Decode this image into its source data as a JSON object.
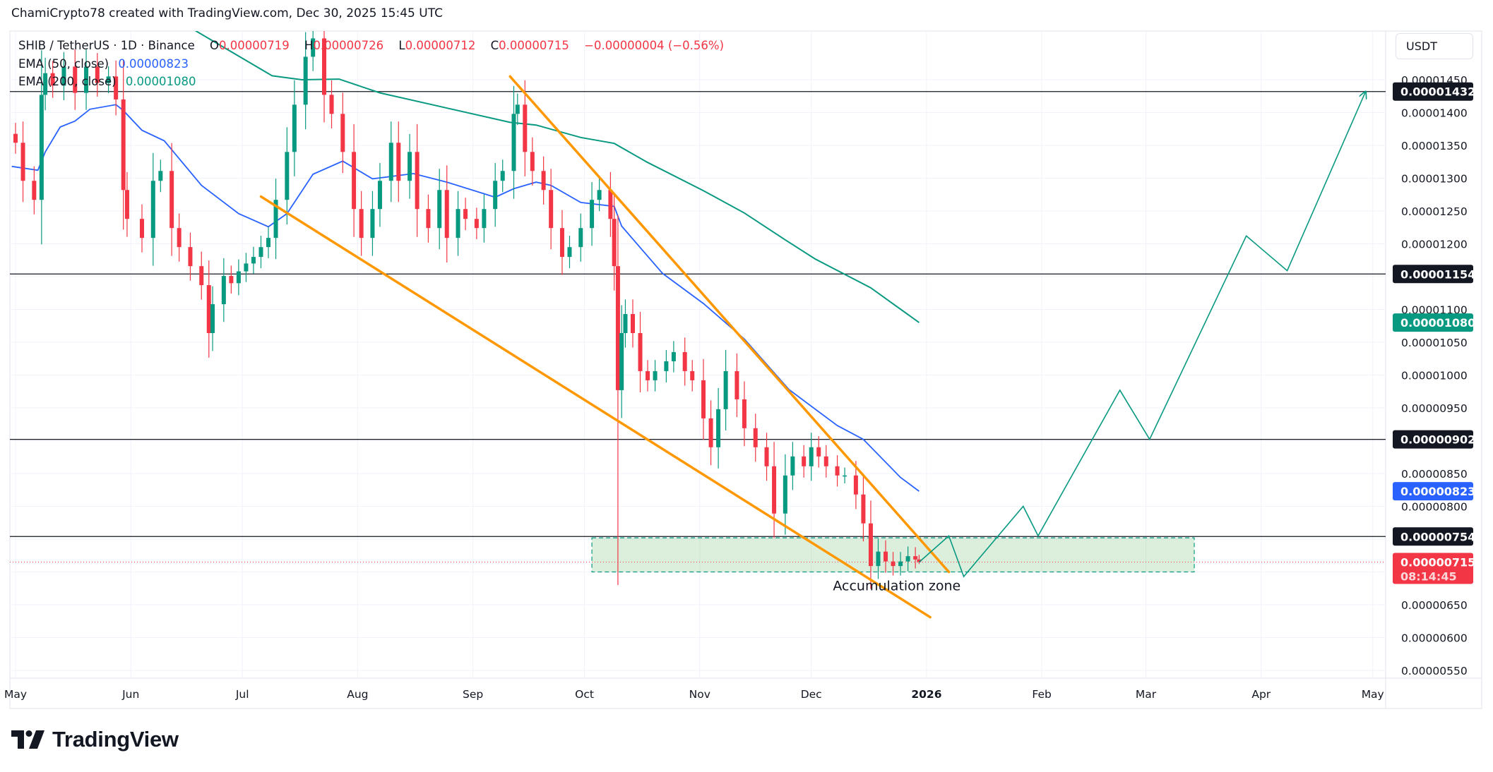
{
  "header": {
    "credit": "ChamiCrypto78 created with TradingView.com, Dec 30, 2025 15:45 UTC"
  },
  "legend": {
    "symbol": "SHIB / TetherUS · 1D · Binance",
    "o_label": "O",
    "o_value": "0.00000719",
    "h_label": "H",
    "h_value": "0.00000726",
    "l_label": "L",
    "l_value": "0.00000712",
    "c_label": "C",
    "c_value": "0.00000715",
    "change": "−0.00000004 (−0.56%)",
    "ema50_label": "EMA (50, close)",
    "ema50_value": "0.00000823",
    "ema200_label": "EMA (200, close)",
    "ema200_value": "0.00001080"
  },
  "price_axis": {
    "currency": "USDT",
    "ticks": [
      "0.00001450",
      "0.00001400",
      "0.00001350",
      "0.00001300",
      "0.00001250",
      "0.00001200",
      "0.00001100",
      "0.00001050",
      "0.00001000",
      "0.00000950",
      "0.00000850",
      "0.00000800",
      "0.00000650",
      "0.00000600",
      "0.00000550"
    ],
    "tags": [
      {
        "value": "0.00001432",
        "color": "#131722"
      },
      {
        "value": "0.00001154",
        "color": "#131722"
      },
      {
        "value": "0.00001080",
        "color": "#089981"
      },
      {
        "value": "0.00000902",
        "color": "#131722"
      },
      {
        "value": "0.00000823",
        "color": "#2962ff"
      },
      {
        "value": "0.00000754",
        "color": "#131722"
      },
      {
        "value": "0.00000715",
        "color": "#f23645",
        "countdown": "08:14:45"
      }
    ]
  },
  "time_axis": {
    "ticks": [
      {
        "label": "May",
        "date": "2025-05-01"
      },
      {
        "label": "Jun",
        "date": "2025-06-01"
      },
      {
        "label": "Jul",
        "date": "2025-07-01"
      },
      {
        "label": "Aug",
        "date": "2025-08-01"
      },
      {
        "label": "Sep",
        "date": "2025-09-01"
      },
      {
        "label": "Oct",
        "date": "2025-10-01"
      },
      {
        "label": "Nov",
        "date": "2025-11-01"
      },
      {
        "label": "Dec",
        "date": "2025-12-01"
      },
      {
        "label": "2026",
        "date": "2026-01-01",
        "bold": true
      },
      {
        "label": "Feb",
        "date": "2026-02-01"
      },
      {
        "label": "Mar",
        "date": "2026-03-01"
      },
      {
        "label": "Apr",
        "date": "2026-04-01"
      },
      {
        "label": "May",
        "date": "2026-05-01"
      }
    ]
  },
  "chart_data": {
    "type": "candlestick",
    "title": "SHIB / TetherUS · 1D · Binance",
    "ylim": [
      5.1e-06,
      1.54e-05
    ],
    "xlim": [
      "2025-05-01",
      "2026-05-15"
    ],
    "grid": true,
    "colors": {
      "up": "#089981",
      "down": "#f23645",
      "ema50": "#2962ff",
      "ema200": "#089981",
      "trendline": "#ff9800",
      "projection": "#089981",
      "level": "#131722"
    },
    "candles_close": [
      [
        "2025-05-01",
        1.354e-05
      ],
      [
        "2025-05-03",
        1.296e-05
      ],
      [
        "2025-05-06",
        1.267e-05
      ],
      [
        "2025-05-08",
        1.427e-05
      ],
      [
        "2025-05-09",
        1.46e-05
      ],
      [
        "2025-05-11",
        1.441e-05
      ],
      [
        "2025-05-14",
        1.47e-05
      ],
      [
        "2025-05-17",
        1.43e-05
      ],
      [
        "2025-05-20",
        1.47e-05
      ],
      [
        "2025-05-23",
        1.445e-05
      ],
      [
        "2025-05-26",
        1.455e-05
      ],
      [
        "2025-05-28",
        1.42e-05
      ],
      [
        "2025-05-30",
        1.282e-05
      ],
      [
        "2025-05-31",
        1.238e-05
      ],
      [
        "2025-06-04",
        1.209e-05
      ],
      [
        "2025-06-07",
        1.296e-05
      ],
      [
        "2025-06-09",
        1.311e-05
      ],
      [
        "2025-06-12",
        1.224e-05
      ],
      [
        "2025-06-14",
        1.195e-05
      ],
      [
        "2025-06-17",
        1.166e-05
      ],
      [
        "2025-06-20",
        1.137e-05
      ],
      [
        "2025-06-22",
        1.064e-05
      ],
      [
        "2025-06-23",
        1.108e-05
      ],
      [
        "2025-06-26",
        1.151e-05
      ],
      [
        "2025-06-28",
        1.14e-05
      ],
      [
        "2025-06-30",
        1.158e-05
      ],
      [
        "2025-07-02",
        1.17e-05
      ],
      [
        "2025-07-04",
        1.18e-05
      ],
      [
        "2025-07-06",
        1.195e-05
      ],
      [
        "2025-07-08",
        1.209e-05
      ],
      [
        "2025-07-10",
        1.267e-05
      ],
      [
        "2025-07-13",
        1.34e-05
      ],
      [
        "2025-07-15",
        1.412e-05
      ],
      [
        "2025-07-18",
        1.485e-05
      ],
      [
        "2025-07-20",
        1.513e-05
      ],
      [
        "2025-07-23",
        1.427e-05
      ],
      [
        "2025-07-25",
        1.398e-05
      ],
      [
        "2025-07-28",
        1.34e-05
      ],
      [
        "2025-07-31",
        1.253e-05
      ],
      [
        "2025-08-02",
        1.209e-05
      ],
      [
        "2025-08-05",
        1.253e-05
      ],
      [
        "2025-08-07",
        1.296e-05
      ],
      [
        "2025-08-10",
        1.354e-05
      ],
      [
        "2025-08-12",
        1.296e-05
      ],
      [
        "2025-08-15",
        1.34e-05
      ],
      [
        "2025-08-17",
        1.253e-05
      ],
      [
        "2025-08-20",
        1.224e-05
      ],
      [
        "2025-08-23",
        1.282e-05
      ],
      [
        "2025-08-25",
        1.209e-05
      ],
      [
        "2025-08-28",
        1.253e-05
      ],
      [
        "2025-08-30",
        1.238e-05
      ],
      [
        "2025-09-02",
        1.224e-05
      ],
      [
        "2025-09-04",
        1.253e-05
      ],
      [
        "2025-09-07",
        1.296e-05
      ],
      [
        "2025-09-09",
        1.311e-05
      ],
      [
        "2025-09-12",
        1.398e-05
      ],
      [
        "2025-09-13",
        1.412e-05
      ],
      [
        "2025-09-15",
        1.34e-05
      ],
      [
        "2025-09-17",
        1.311e-05
      ],
      [
        "2025-09-20",
        1.282e-05
      ],
      [
        "2025-09-22",
        1.224e-05
      ],
      [
        "2025-09-25",
        1.18e-05
      ],
      [
        "2025-09-27",
        1.195e-05
      ],
      [
        "2025-09-30",
        1.224e-05
      ],
      [
        "2025-10-03",
        1.267e-05
      ],
      [
        "2025-10-05",
        1.282e-05
      ],
      [
        "2025-10-08",
        1.238e-05
      ],
      [
        "2025-10-09",
        1.166e-05
      ],
      [
        "2025-10-10",
        9.77e-06
      ],
      [
        "2025-10-11",
        1.064e-05
      ],
      [
        "2025-10-12",
        1.093e-05
      ],
      [
        "2025-10-14",
        1.064e-05
      ],
      [
        "2025-10-16",
        1.006e-05
      ],
      [
        "2025-10-18",
        9.92e-06
      ],
      [
        "2025-10-20",
        1.006e-05
      ],
      [
        "2025-10-23",
        1.021e-05
      ],
      [
        "2025-10-25",
        1.035e-05
      ],
      [
        "2025-10-28",
        1.006e-05
      ],
      [
        "2025-10-30",
        9.92e-06
      ],
      [
        "2025-11-02",
        9.34e-06
      ],
      [
        "2025-11-04",
        8.9e-06
      ],
      [
        "2025-11-06",
        9.48e-06
      ],
      [
        "2025-11-08",
        1.006e-05
      ],
      [
        "2025-11-11",
        9.63e-06
      ],
      [
        "2025-11-13",
        9.19e-06
      ],
      [
        "2025-11-16",
        8.9e-06
      ],
      [
        "2025-11-19",
        8.61e-06
      ],
      [
        "2025-11-21",
        7.89e-06
      ],
      [
        "2025-11-24",
        8.47e-06
      ],
      [
        "2025-11-26",
        8.76e-06
      ],
      [
        "2025-11-29",
        8.61e-06
      ],
      [
        "2025-12-01",
        8.9e-06
      ],
      [
        "2025-12-03",
        8.76e-06
      ],
      [
        "2025-12-05",
        8.61e-06
      ],
      [
        "2025-12-08",
        8.47e-06
      ],
      [
        "2025-12-10",
        8.47e-06
      ],
      [
        "2025-12-13",
        8.18e-06
      ],
      [
        "2025-12-15",
        7.74e-06
      ],
      [
        "2025-12-17",
        7.09e-06
      ],
      [
        "2025-12-19",
        7.31e-06
      ],
      [
        "2025-12-21",
        7.16e-06
      ],
      [
        "2025-12-23",
        7.09e-06
      ],
      [
        "2025-12-25",
        7.16e-06
      ],
      [
        "2025-12-27",
        7.24e-06
      ],
      [
        "2025-12-29",
        7.19e-06
      ]
    ],
    "last_candle": {
      "date": "2025-12-30",
      "open": 7.19e-06,
      "high": 7.26e-06,
      "low": 7.12e-06,
      "close": 7.15e-06
    },
    "ema50": {
      "name": "EMA (50, close)",
      "points": [
        [
          "2025-04-30",
          1.318e-05
        ],
        [
          "2025-05-07",
          1.312e-05
        ],
        [
          "2025-05-09",
          1.34e-05
        ],
        [
          "2025-05-13",
          1.378e-05
        ],
        [
          "2025-05-17",
          1.387e-05
        ],
        [
          "2025-05-21",
          1.405e-05
        ],
        [
          "2025-05-28",
          1.412e-05
        ],
        [
          "2025-05-30",
          1.403e-05
        ],
        [
          "2025-06-04",
          1.373e-05
        ],
        [
          "2025-06-10",
          1.357e-05
        ],
        [
          "2025-06-20",
          1.289e-05
        ],
        [
          "2025-06-30",
          1.246e-05
        ],
        [
          "2025-07-08",
          1.226e-05
        ],
        [
          "2025-07-13",
          1.246e-05
        ],
        [
          "2025-07-20",
          1.306e-05
        ],
        [
          "2025-07-28",
          1.326e-05
        ],
        [
          "2025-08-05",
          1.299e-05
        ],
        [
          "2025-08-16",
          1.307e-05
        ],
        [
          "2025-08-25",
          1.294e-05
        ],
        [
          "2025-09-07",
          1.271e-05
        ],
        [
          "2025-09-12",
          1.284e-05
        ],
        [
          "2025-09-18",
          1.294e-05
        ],
        [
          "2025-09-22",
          1.289e-05
        ],
        [
          "2025-09-30",
          1.263e-05
        ],
        [
          "2025-10-09",
          1.257e-05
        ],
        [
          "2025-10-11",
          1.227e-05
        ],
        [
          "2025-10-22",
          1.155e-05
        ],
        [
          "2025-11-02",
          1.109e-05
        ],
        [
          "2025-11-13",
          1.055e-05
        ],
        [
          "2025-11-25",
          9.78e-06
        ],
        [
          "2025-12-08",
          9.23e-06
        ],
        [
          "2025-12-15",
          9.02e-06
        ],
        [
          "2025-12-25",
          8.44e-06
        ],
        [
          "2025-12-30",
          8.23e-06
        ]
      ]
    },
    "ema200": {
      "name": "EMA (200, close)",
      "points": [
        [
          "2025-06-18",
          1.526e-05
        ],
        [
          "2025-07-09",
          1.456e-05
        ],
        [
          "2025-07-17",
          1.45e-05
        ],
        [
          "2025-07-27",
          1.451e-05
        ],
        [
          "2025-08-07",
          1.43e-05
        ],
        [
          "2025-08-21",
          1.412e-05
        ],
        [
          "2025-08-28",
          1.403e-05
        ],
        [
          "2025-09-11",
          1.385e-05
        ],
        [
          "2025-09-18",
          1.381e-05
        ],
        [
          "2025-09-30",
          1.362e-05
        ],
        [
          "2025-10-09",
          1.353e-05
        ],
        [
          "2025-10-18",
          1.324e-05
        ],
        [
          "2025-11-02",
          1.281e-05
        ],
        [
          "2025-11-13",
          1.247e-05
        ],
        [
          "2025-11-24",
          1.206e-05
        ],
        [
          "2025-12-02",
          1.177e-05
        ],
        [
          "2025-12-17",
          1.133e-05
        ],
        [
          "2025-12-30",
          1.08e-05
        ]
      ]
    },
    "levels": [
      1.432e-05,
      1.154e-05,
      9.02e-06,
      7.54e-06
    ],
    "current_price": 7.15e-06,
    "trendlines": [
      {
        "from": [
          "2025-09-11",
          1.455e-05
        ],
        "to": [
          "2026-01-07",
          7e-06
        ]
      },
      {
        "from": [
          "2025-07-06",
          1.272e-05
        ],
        "to": [
          "2026-01-02",
          6.31e-06
        ]
      }
    ],
    "projection": [
      [
        "2025-12-30",
        7.15e-06
      ],
      [
        "2026-01-07",
        7.55e-06
      ],
      [
        "2026-01-11",
        6.93e-06
      ],
      [
        "2026-01-27",
        8e-06
      ],
      [
        "2026-01-31",
        7.55e-06
      ],
      [
        "2026-02-22",
        9.77e-06
      ],
      [
        "2026-03-02",
        9.02e-06
      ],
      [
        "2026-03-28",
        1.212e-05
      ],
      [
        "2026-04-08",
        1.159e-05
      ],
      [
        "2026-04-29",
        1.431e-05
      ]
    ],
    "zone": {
      "label": "Accumulation zone",
      "from": "2025-10-03",
      "to": "2026-03-14",
      "top": 7.52e-06,
      "bottom": 7e-06
    }
  },
  "branding": {
    "logo_text": "TradingView"
  }
}
